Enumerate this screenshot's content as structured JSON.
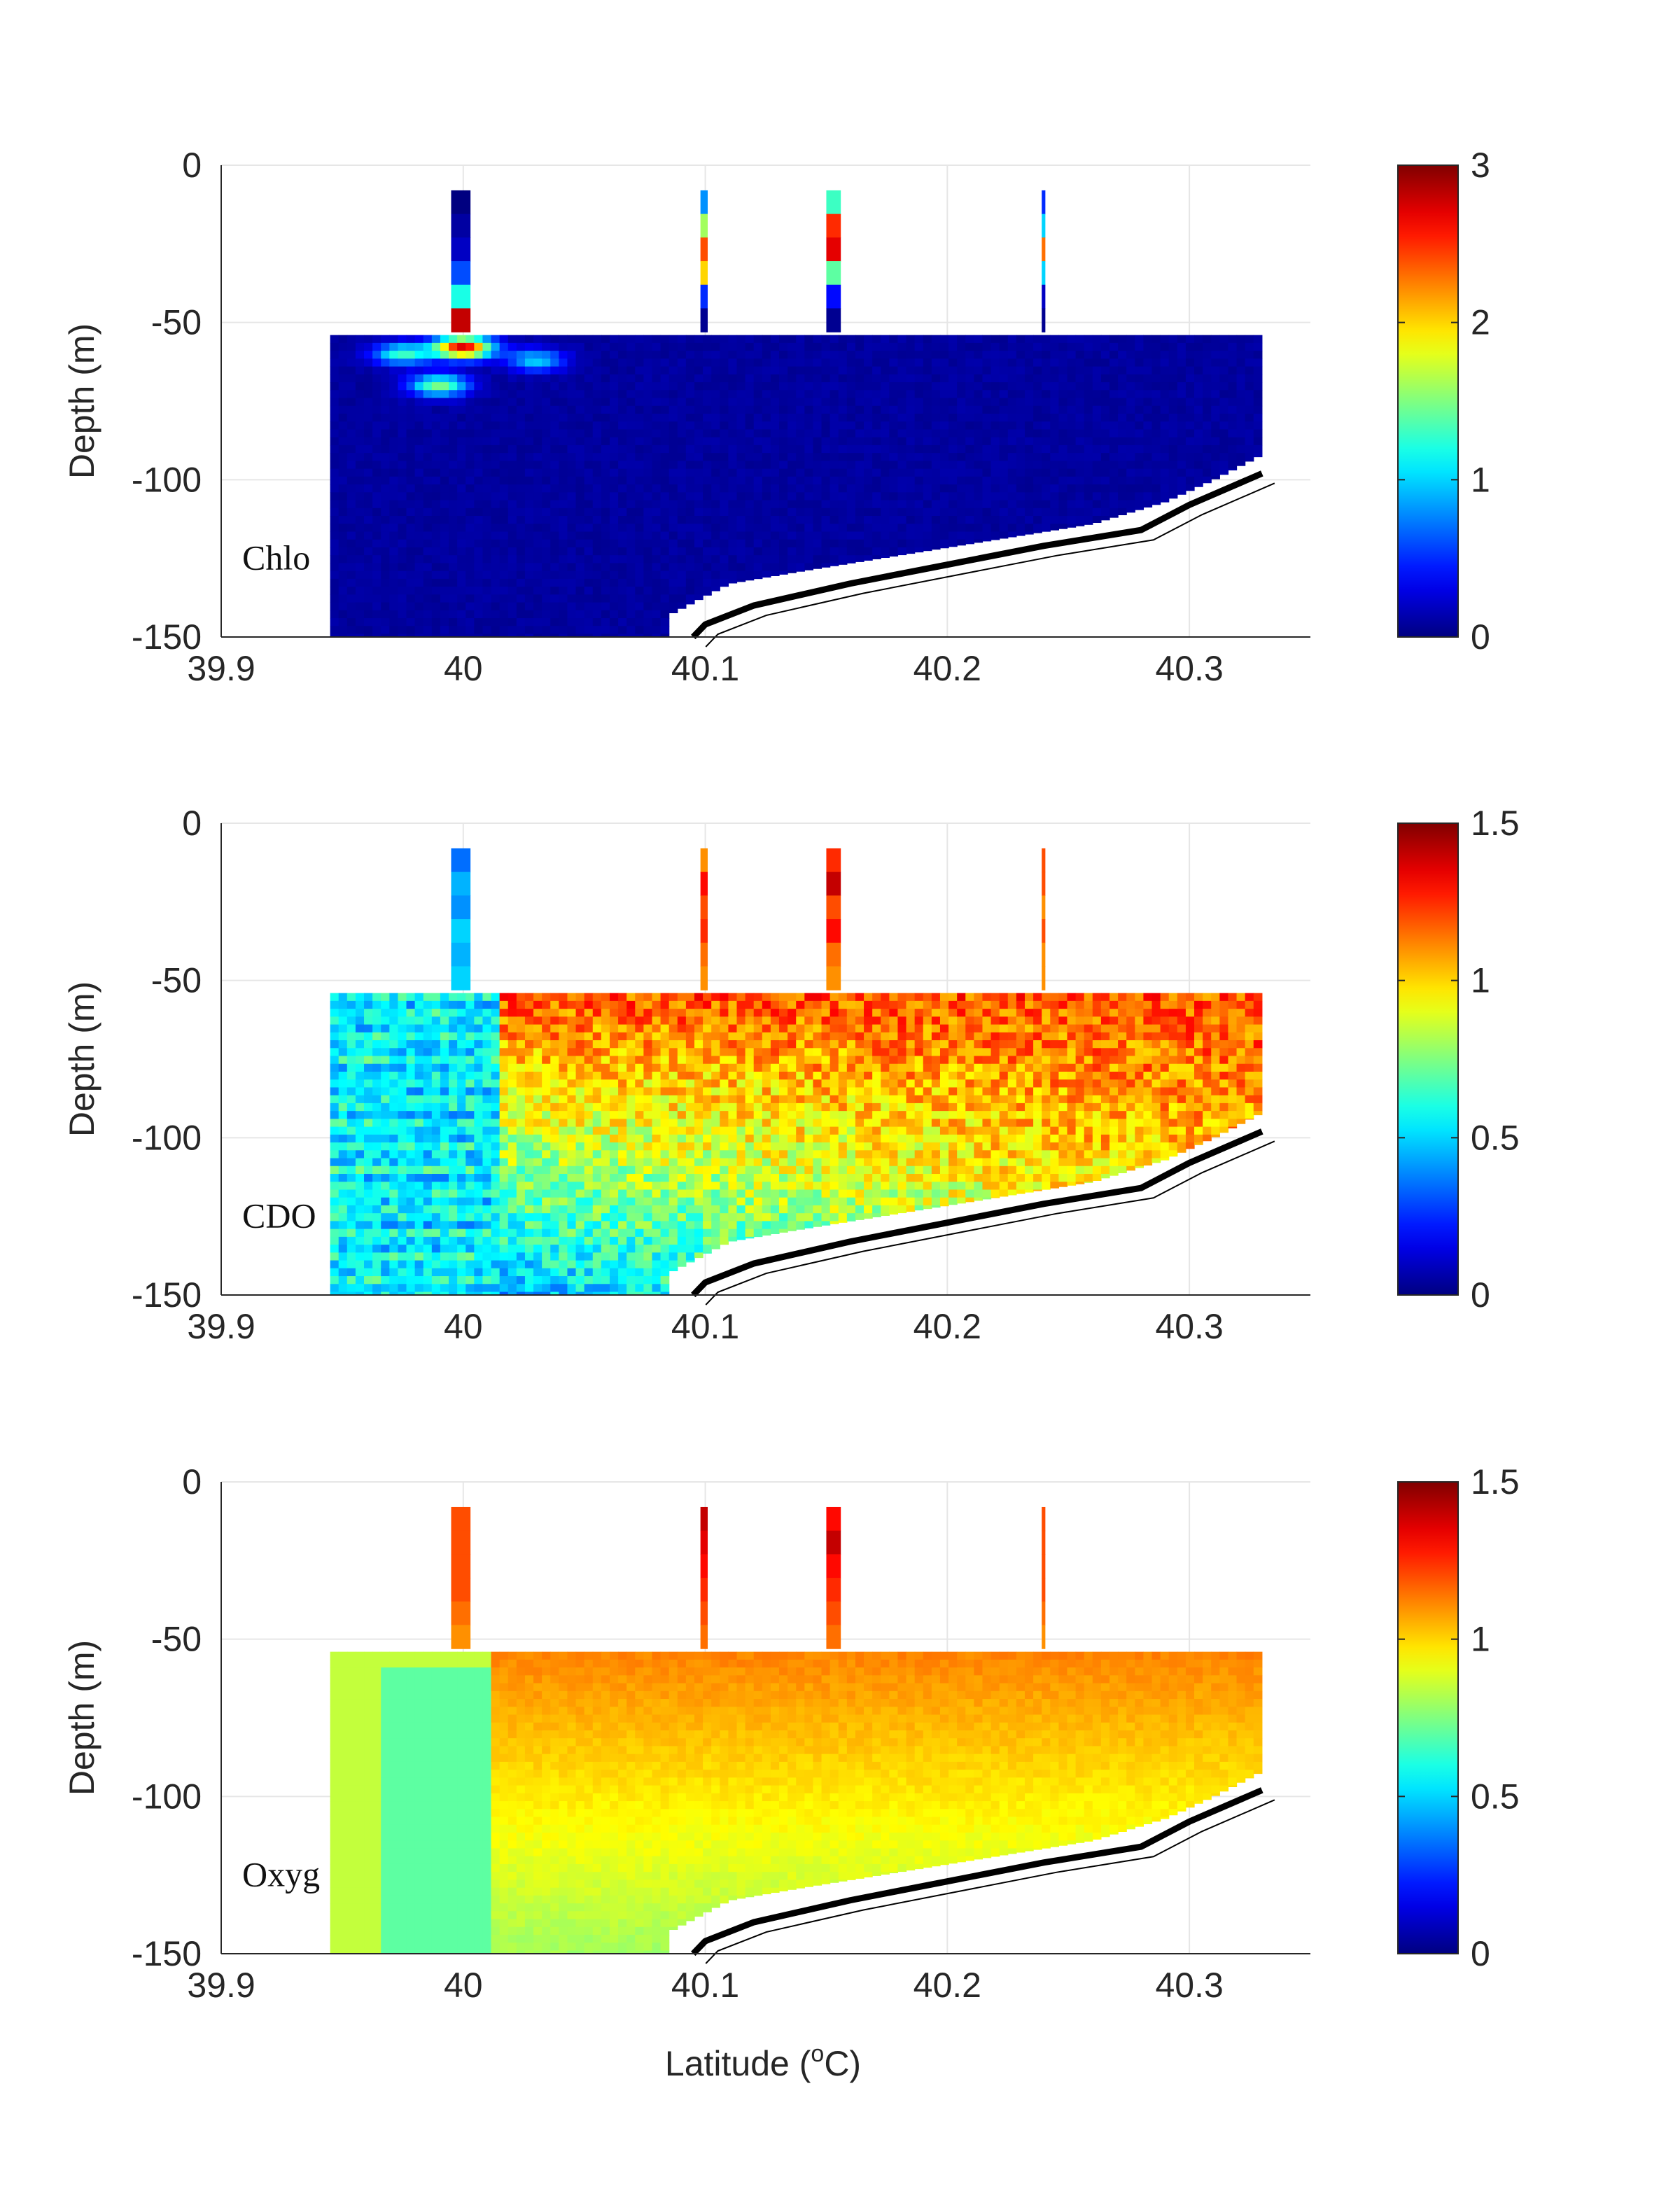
{
  "figure": {
    "xlabel_main": "Latitude (",
    "xlabel_sup": "o",
    "xlabel_tail": "C)"
  },
  "chart_data": [
    {
      "type": "heatmap",
      "ylabel": "Depth (m)",
      "panel_text": "Chlo",
      "xlim": [
        39.9,
        40.35
      ],
      "ylim": [
        -150,
        0
      ],
      "xticks": [
        39.9,
        40,
        40.1,
        40.2,
        40.3
      ],
      "xtick_labels": [
        "39.9",
        "40",
        "40.1",
        "40.2",
        "40.3"
      ],
      "yticks": [
        0,
        -50,
        -100,
        -150
      ],
      "ytick_labels": [
        "0",
        "-50",
        "-100",
        "-150"
      ],
      "colorbar": {
        "range": [
          0,
          3
        ],
        "ticks": [
          0,
          1,
          2,
          3
        ],
        "tick_labels": [
          "0",
          "1",
          "2",
          "3"
        ],
        "colormap": "jet"
      },
      "grid": true,
      "surface_casts": [
        {
          "lat_range": [
            39.995,
            40.003
          ],
          "depth_range": [
            -8,
            -53
          ],
          "values_top_to_bottom": [
            0.0,
            0.1,
            0.2,
            0.6,
            1.2,
            2.8
          ]
        },
        {
          "lat_range": [
            40.098,
            40.101
          ],
          "depth_range": [
            -8,
            -53
          ],
          "values_top_to_bottom": [
            0.8,
            1.6,
            2.4,
            2.0,
            0.5,
            0.05
          ]
        },
        {
          "lat_range": [
            40.15,
            40.156
          ],
          "depth_range": [
            -8,
            -53
          ],
          "values_top_to_bottom": [
            1.3,
            2.5,
            2.7,
            1.4,
            0.4,
            0.05
          ]
        },
        {
          "lat_range": [
            40.239,
            40.2405
          ],
          "depth_range": [
            -8,
            -53
          ],
          "values_top_to_bottom": [
            0.5,
            1.0,
            2.3,
            1.0,
            0.2,
            0.05
          ]
        }
      ],
      "section": {
        "lat_start": 39.945,
        "lat_end": 40.33,
        "top_depth": -54,
        "bottom_edge": [
          [
            40.085,
            -143
          ],
          [
            40.11,
            -133
          ],
          [
            40.14,
            -129
          ],
          [
            40.18,
            -124
          ],
          [
            40.22,
            -119
          ],
          [
            40.26,
            -114
          ],
          [
            40.29,
            -107
          ],
          [
            40.31,
            -100
          ],
          [
            40.33,
            -92
          ]
        ],
        "background_value": 0.05,
        "features": [
          {
            "lat": 39.975,
            "depth": -60,
            "value": 1.2
          },
          {
            "lat": 40.0,
            "depth": -58,
            "value": 2.6
          },
          {
            "lat": 39.99,
            "depth": -70,
            "value": 1.4
          },
          {
            "lat": 40.03,
            "depth": -62,
            "value": 0.9
          }
        ]
      },
      "bathymetry": [
        [
          40.095,
          -150
        ],
        [
          40.1,
          -146
        ],
        [
          40.12,
          -140
        ],
        [
          40.16,
          -133
        ],
        [
          40.2,
          -127
        ],
        [
          40.24,
          -121
        ],
        [
          40.28,
          -116
        ],
        [
          40.3,
          -108
        ],
        [
          40.33,
          -98
        ]
      ]
    },
    {
      "type": "heatmap",
      "ylabel": "Depth (m)",
      "panel_text": "CDO",
      "xlim": [
        39.9,
        40.35
      ],
      "ylim": [
        -150,
        0
      ],
      "xticks": [
        39.9,
        40,
        40.1,
        40.2,
        40.3
      ],
      "xtick_labels": [
        "39.9",
        "40",
        "40.1",
        "40.2",
        "40.3"
      ],
      "yticks": [
        0,
        -50,
        -100,
        -150
      ],
      "ytick_labels": [
        "0",
        "-50",
        "-100",
        "-150"
      ],
      "colorbar": {
        "range": [
          0,
          1.5
        ],
        "ticks": [
          0,
          0.5,
          1,
          1.5
        ],
        "tick_labels": [
          "0",
          "0.5",
          "1",
          "1.5"
        ],
        "colormap": "jet"
      },
      "grid": true,
      "surface_casts": [
        {
          "lat_range": [
            39.995,
            40.003
          ],
          "depth_range": [
            -8,
            -53
          ],
          "values_top_to_bottom": [
            0.35,
            0.45,
            0.4,
            0.5,
            0.45,
            0.5
          ]
        },
        {
          "lat_range": [
            40.098,
            40.101
          ],
          "depth_range": [
            -8,
            -53
          ],
          "values_top_to_bottom": [
            1.1,
            1.3,
            1.2,
            1.25,
            1.15,
            1.1
          ]
        },
        {
          "lat_range": [
            40.15,
            40.156
          ],
          "depth_range": [
            -8,
            -53
          ],
          "values_top_to_bottom": [
            1.25,
            1.4,
            1.2,
            1.3,
            1.15,
            1.1
          ]
        },
        {
          "lat_range": [
            40.239,
            40.2405
          ],
          "depth_range": [
            -8,
            -53
          ],
          "values_top_to_bottom": [
            1.2,
            1.2,
            1.1,
            1.2,
            1.1,
            1.1
          ]
        }
      ],
      "section": {
        "lat_start": 39.945,
        "lat_end": 40.33,
        "top_depth": -54,
        "bottom_edge": [
          [
            40.085,
            -143
          ],
          [
            40.11,
            -133
          ],
          [
            40.14,
            -129
          ],
          [
            40.18,
            -124
          ],
          [
            40.22,
            -119
          ],
          [
            40.26,
            -114
          ],
          [
            40.29,
            -107
          ],
          [
            40.31,
            -100
          ],
          [
            40.33,
            -92
          ]
        ],
        "pattern": "cdom"
      },
      "bathymetry": [
        [
          40.095,
          -150
        ],
        [
          40.1,
          -146
        ],
        [
          40.12,
          -140
        ],
        [
          40.16,
          -133
        ],
        [
          40.2,
          -127
        ],
        [
          40.24,
          -121
        ],
        [
          40.28,
          -116
        ],
        [
          40.3,
          -108
        ],
        [
          40.33,
          -98
        ]
      ]
    },
    {
      "type": "heatmap",
      "ylabel": "Depth (m)",
      "panel_text": "Oxyg",
      "xlim": [
        39.9,
        40.35
      ],
      "ylim": [
        -150,
        0
      ],
      "xticks": [
        39.9,
        40,
        40.1,
        40.2,
        40.3
      ],
      "xtick_labels": [
        "39.9",
        "40",
        "40.1",
        "40.2",
        "40.3"
      ],
      "yticks": [
        0,
        -50,
        -100,
        -150
      ],
      "ytick_labels": [
        "0",
        "-50",
        "-100",
        "-150"
      ],
      "colorbar": {
        "range": [
          0,
          1.5
        ],
        "ticks": [
          0,
          0.5,
          1,
          1.5
        ],
        "tick_labels": [
          "0",
          "0.5",
          "1",
          "1.5"
        ],
        "colormap": "jet"
      },
      "grid": true,
      "surface_casts": [
        {
          "lat_range": [
            39.995,
            40.003
          ],
          "depth_range": [
            -8,
            -53
          ],
          "values_top_to_bottom": [
            1.2,
            1.2,
            1.2,
            1.2,
            1.15,
            1.1
          ]
        },
        {
          "lat_range": [
            40.098,
            40.101
          ],
          "depth_range": [
            -8,
            -53
          ],
          "values_top_to_bottom": [
            1.4,
            1.35,
            1.3,
            1.25,
            1.2,
            1.15
          ]
        },
        {
          "lat_range": [
            40.15,
            40.156
          ],
          "depth_range": [
            -8,
            -53
          ],
          "values_top_to_bottom": [
            1.3,
            1.4,
            1.3,
            1.25,
            1.2,
            1.15
          ]
        },
        {
          "lat_range": [
            40.239,
            40.2405
          ],
          "depth_range": [
            -8,
            -53
          ],
          "values_top_to_bottom": [
            1.2,
            1.2,
            1.2,
            1.2,
            1.15,
            1.1
          ]
        }
      ],
      "section": {
        "lat_start": 39.945,
        "lat_end": 40.33,
        "top_depth": -54,
        "bottom_edge": [
          [
            40.085,
            -143
          ],
          [
            40.11,
            -133
          ],
          [
            40.14,
            -129
          ],
          [
            40.18,
            -124
          ],
          [
            40.22,
            -119
          ],
          [
            40.26,
            -114
          ],
          [
            40.29,
            -107
          ],
          [
            40.31,
            -100
          ],
          [
            40.33,
            -92
          ]
        ],
        "pattern": "oxygen"
      },
      "bathymetry": [
        [
          40.095,
          -150
        ],
        [
          40.1,
          -146
        ],
        [
          40.12,
          -140
        ],
        [
          40.16,
          -133
        ],
        [
          40.2,
          -127
        ],
        [
          40.24,
          -121
        ],
        [
          40.28,
          -116
        ],
        [
          40.3,
          -108
        ],
        [
          40.33,
          -98
        ]
      ]
    }
  ]
}
